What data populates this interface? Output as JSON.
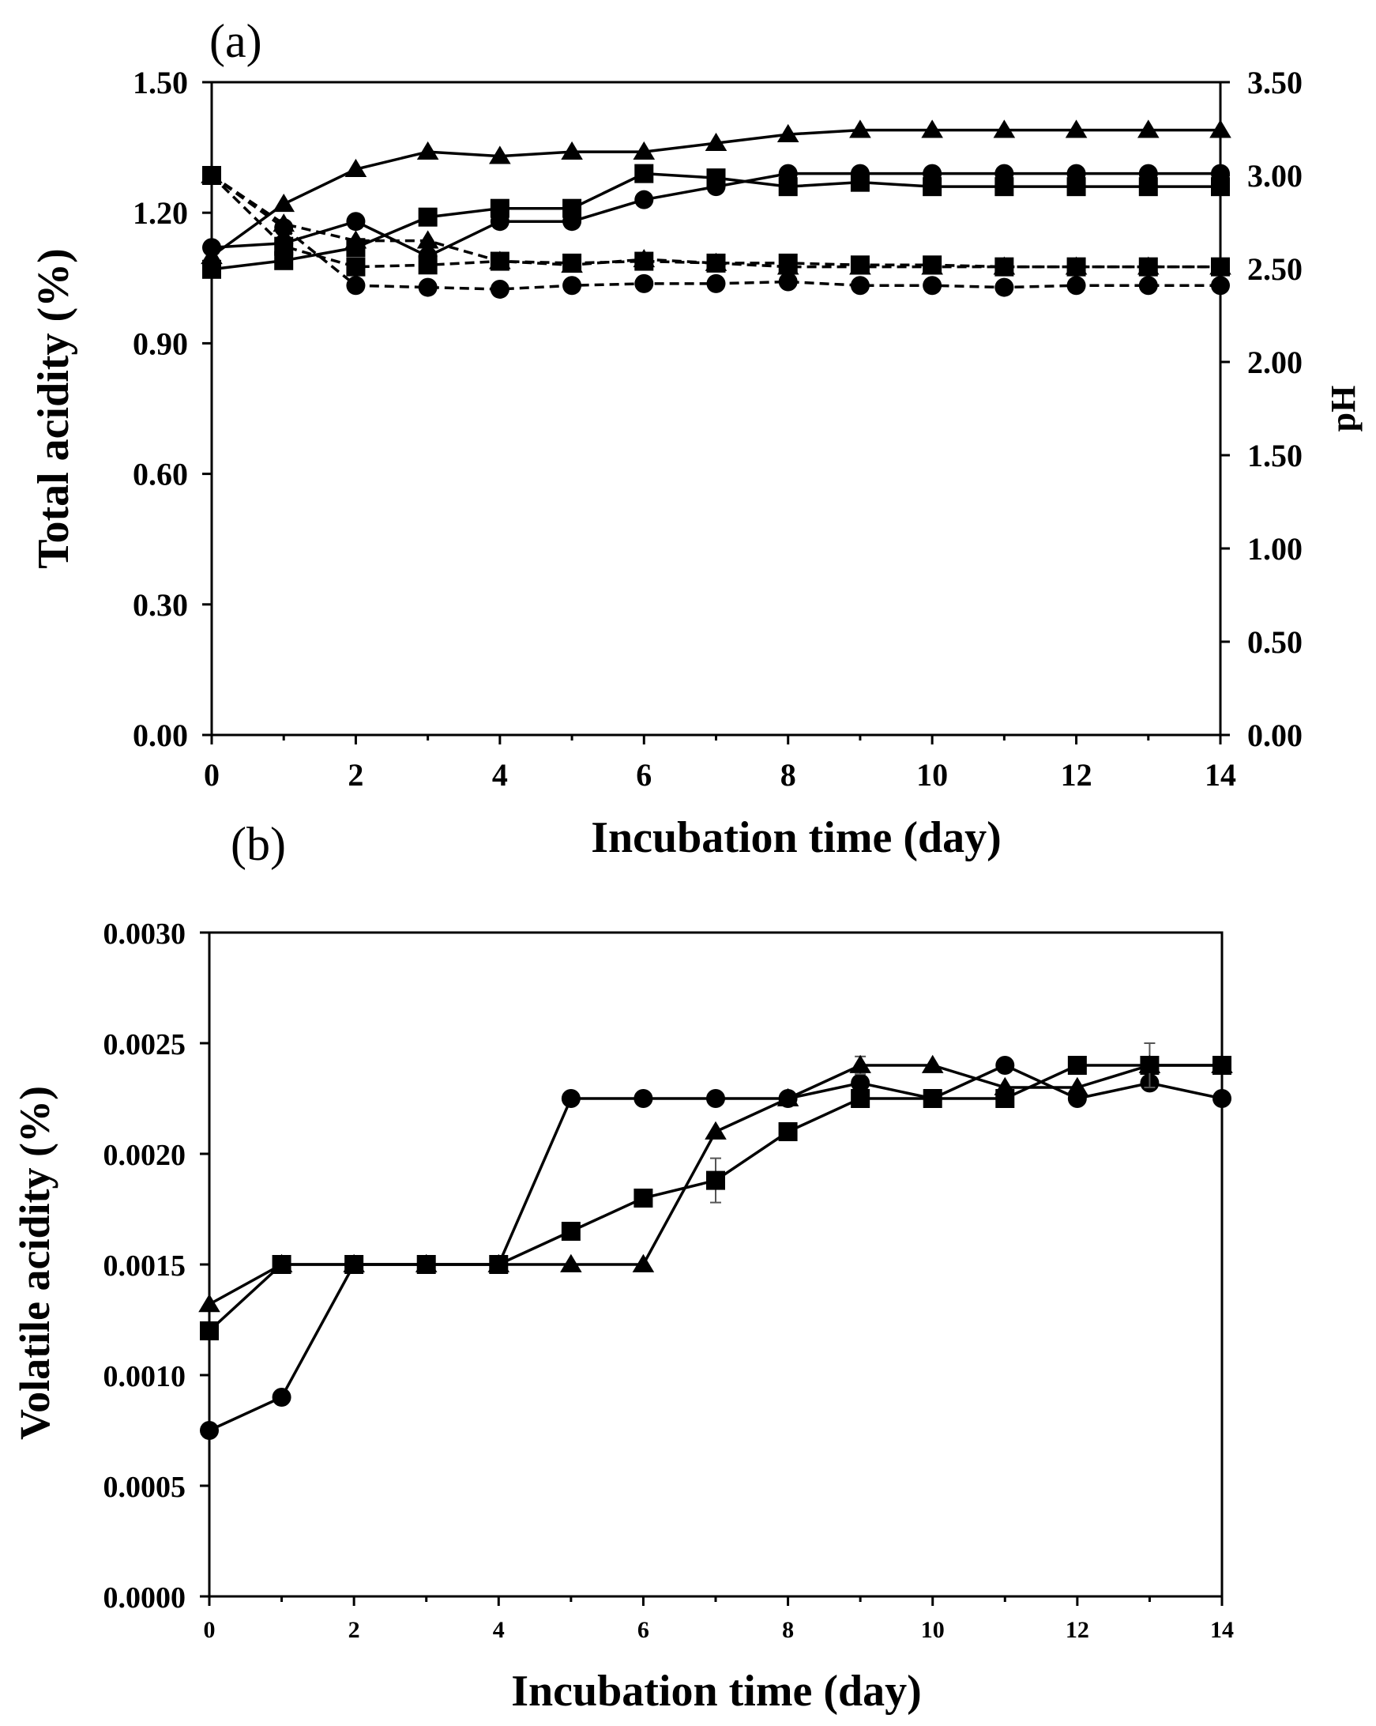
{
  "chart_data": [
    {
      "panel_label": "(a)",
      "type": "line",
      "xlabel": "Incubation time (day)",
      "ylabel": "Total acidity (%)",
      "y2label": "pH",
      "xlim": [
        0,
        14
      ],
      "ylim": [
        0,
        1.5
      ],
      "y2lim": [
        0,
        3.5
      ],
      "x_ticks": [
        "0",
        "2",
        "4",
        "6",
        "8",
        "10",
        "12",
        "14"
      ],
      "y_ticks": [
        "0.00",
        "0.30",
        "0.60",
        "0.90",
        "1.20",
        "1.50"
      ],
      "y2_ticks": [
        "0.00",
        "0.50",
        "1.00",
        "1.50",
        "2.00",
        "2.50",
        "3.00",
        "3.50"
      ],
      "x": [
        0,
        1,
        2,
        3,
        4,
        5,
        6,
        7,
        8,
        9,
        10,
        11,
        12,
        13,
        14
      ],
      "series": [
        {
          "name": "Total acidity - circle",
          "axis": "left",
          "marker": "circle",
          "style": "solid",
          "values": [
            1.12,
            1.13,
            1.18,
            1.1,
            1.18,
            1.18,
            1.23,
            1.26,
            1.29,
            1.29,
            1.29,
            1.29,
            1.29,
            1.29,
            1.29
          ]
        },
        {
          "name": "Total acidity - square",
          "axis": "left",
          "marker": "square",
          "style": "solid",
          "values": [
            1.07,
            1.09,
            1.12,
            1.19,
            1.21,
            1.21,
            1.29,
            1.28,
            1.26,
            1.27,
            1.26,
            1.26,
            1.26,
            1.26,
            1.26
          ]
        },
        {
          "name": "Total acidity - triangle",
          "axis": "left",
          "marker": "triangle",
          "style": "solid",
          "values": [
            1.1,
            1.22,
            1.3,
            1.34,
            1.33,
            1.34,
            1.34,
            1.36,
            1.38,
            1.39,
            1.39,
            1.39,
            1.39,
            1.39,
            1.39
          ]
        },
        {
          "name": "pH - circle",
          "axis": "right",
          "marker": "circle",
          "style": "dashed",
          "values": [
            3.0,
            2.72,
            2.41,
            2.4,
            2.39,
            2.41,
            2.42,
            2.42,
            2.43,
            2.41,
            2.41,
            2.4,
            2.41,
            2.41,
            2.41
          ]
        },
        {
          "name": "pH - square",
          "axis": "right",
          "marker": "square",
          "style": "dashed",
          "values": [
            3.0,
            2.62,
            2.51,
            2.52,
            2.54,
            2.53,
            2.54,
            2.53,
            2.53,
            2.52,
            2.52,
            2.51,
            2.51,
            2.51,
            2.51
          ]
        },
        {
          "name": "pH - triangle",
          "axis": "right",
          "marker": "triangle",
          "style": "dashed",
          "values": [
            3.0,
            2.74,
            2.65,
            2.65,
            2.54,
            2.52,
            2.55,
            2.53,
            2.51,
            2.51,
            2.51,
            2.51,
            2.51,
            2.51,
            2.51
          ]
        }
      ]
    },
    {
      "panel_label": "(b)",
      "type": "line",
      "xlabel": "Incubation time (day)",
      "ylabel": "Volatile acidity (%)",
      "xlim": [
        0,
        14
      ],
      "ylim": [
        0,
        0.003
      ],
      "x_ticks": [
        "0",
        "2",
        "4",
        "6",
        "8",
        "10",
        "12",
        "14"
      ],
      "y_ticks": [
        "0.0000",
        "0.0005",
        "0.0010",
        "0.0015",
        "0.0020",
        "0.0025",
        "0.0030"
      ],
      "x": [
        0,
        1,
        2,
        3,
        4,
        5,
        6,
        7,
        8,
        9,
        10,
        11,
        12,
        13,
        14
      ],
      "series": [
        {
          "name": "circle",
          "marker": "circle",
          "style": "solid",
          "values": [
            0.00075,
            0.0009,
            0.0015,
            0.0015,
            0.0015,
            0.00225,
            0.00225,
            0.00225,
            0.00225,
            0.00232,
            0.00225,
            0.0024,
            0.00225,
            0.00232,
            0.00225
          ]
        },
        {
          "name": "square",
          "marker": "square",
          "style": "solid",
          "values": [
            0.0012,
            0.0015,
            0.0015,
            0.0015,
            0.0015,
            0.00165,
            0.0018,
            0.00188,
            0.0021,
            0.00225,
            0.00225,
            0.00225,
            0.0024,
            0.0024,
            0.0024
          ],
          "error": [
            0,
            0,
            0,
            0,
            0,
            0,
            0,
            0.0001,
            0,
            0,
            0,
            0,
            0,
            0,
            0
          ]
        },
        {
          "name": "triangle",
          "marker": "triangle",
          "style": "solid",
          "values": [
            0.00132,
            0.0015,
            0.0015,
            0.0015,
            0.0015,
            0.0015,
            0.0015,
            0.0021,
            0.00225,
            0.0024,
            0.0024,
            0.0023,
            0.0023,
            0.0024,
            0.0024
          ],
          "error": [
            0,
            0,
            0,
            0,
            0,
            0,
            0,
            0,
            0,
            4e-05,
            0,
            0,
            0,
            0.0001,
            0
          ]
        }
      ]
    }
  ]
}
